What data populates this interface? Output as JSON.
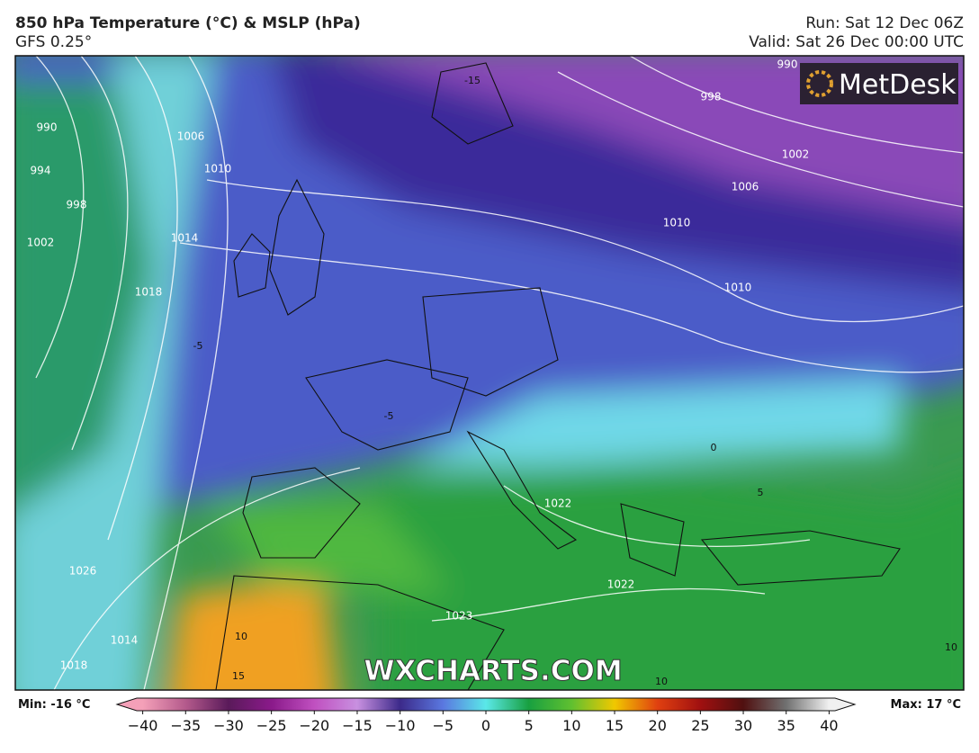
{
  "header": {
    "title": "850 hPa Temperature (°C) & MSLP (hPa)",
    "subtitle": "GFS 0.25°",
    "run": "Run: Sat 12 Dec 06Z",
    "valid": "Valid: Sat 26 Dec 00:00 UTC"
  },
  "map": {
    "logo": "MetDesk",
    "watermark": "WXCHARTS.COM",
    "isobar_labels": [
      990,
      994,
      998,
      1002,
      1006,
      1010,
      1014,
      1018,
      1026,
      1014,
      1018,
      1022,
      1022,
      1023,
      1010,
      1010,
      1006,
      1002,
      998,
      990
    ],
    "temperature_labels": [
      -15,
      -5,
      -5,
      0,
      5,
      10,
      15,
      10,
      10
    ]
  },
  "colorbar": {
    "min_label": "Min: -16 °C",
    "max_label": "Max: 17 °C",
    "range": [
      -43,
      43
    ],
    "ticks": [
      {
        "value": -40,
        "label": "−40"
      },
      {
        "value": -35,
        "label": "−35"
      },
      {
        "value": -30,
        "label": "−30"
      },
      {
        "value": -25,
        "label": "−25"
      },
      {
        "value": -20,
        "label": "−20"
      },
      {
        "value": -15,
        "label": "−15"
      },
      {
        "value": -10,
        "label": "−10"
      },
      {
        "value": -5,
        "label": "−5"
      },
      0,
      5,
      10,
      15,
      20,
      25,
      30,
      35,
      40
    ],
    "colors": [
      "#f4a0b8",
      "#b45a8c",
      "#5a1a5a",
      "#8a1a8a",
      "#c050c0",
      "#c890e0",
      "#3c2a8a",
      "#5a78e0",
      "#5ae8e8",
      "#18a040",
      "#60c030",
      "#f0c800",
      "#e04010",
      "#a01010",
      "#501010",
      "#707070",
      "#f0f0f0"
    ]
  }
}
